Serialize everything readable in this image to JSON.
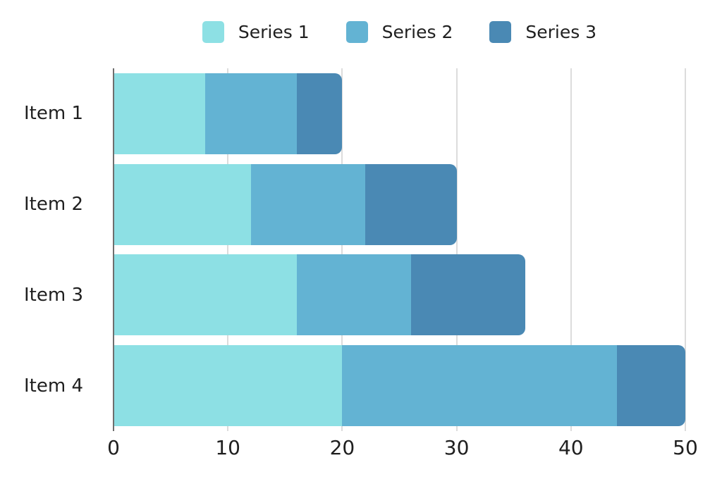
{
  "chart_data": {
    "type": "bar",
    "orientation": "horizontal",
    "stacked": true,
    "title": "",
    "xlabel": "",
    "ylabel": "",
    "categories": [
      "Item 1",
      "Item 2",
      "Item 3",
      "Item 4"
    ],
    "series": [
      {
        "name": "Series 1",
        "color": "#8DE0E4",
        "values": [
          8,
          12,
          16,
          20
        ]
      },
      {
        "name": "Series 2",
        "color": "#63B3D3",
        "values": [
          8,
          10,
          10,
          24
        ]
      },
      {
        "name": "Series 3",
        "color": "#4A89B4",
        "values": [
          4,
          8,
          10,
          6
        ]
      }
    ],
    "stack_totals": [
      20,
      30,
      36,
      50
    ],
    "x_ticks": [
      0,
      10,
      20,
      30,
      40,
      50
    ],
    "xlim": [
      0,
      50
    ],
    "grid": true,
    "legend_position": "top"
  },
  "colors": {
    "background": "#FFFFFF",
    "gridline": "#DCDCDC",
    "axis_line": "#6E6E6E",
    "text": "#1F1F1F"
  }
}
